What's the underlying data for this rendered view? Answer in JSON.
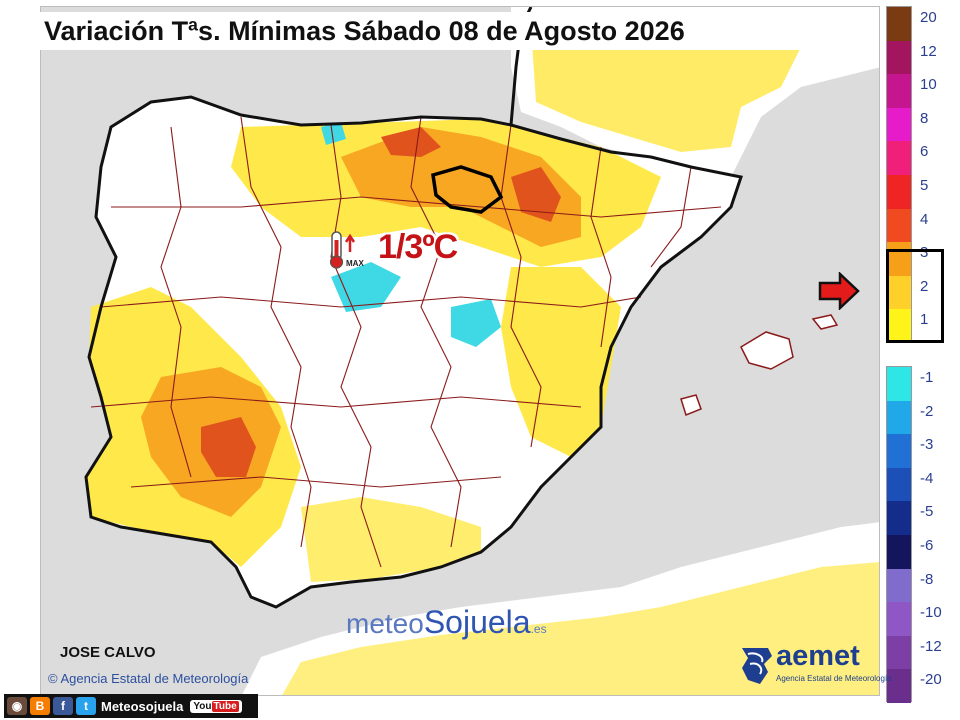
{
  "title": "Variación Tªs. Mínimas Sábado 08 de Agosto 2026",
  "highlight": {
    "label": "MAX",
    "value": "1/3ºC"
  },
  "author": "JOSE CALVO",
  "agency_credit": "© Agencia Estatal de Meteorología",
  "brand": {
    "meteo": "meteo",
    "sojuela": "Sojuela",
    "tld": ".es"
  },
  "aemet": {
    "name": "aemet",
    "subtitle": "Agencia Estatal de Meteorología"
  },
  "social": {
    "handle": "Meteosojuela",
    "youtube_a": "You",
    "youtube_b": "Tube"
  },
  "legend": {
    "warm": [
      {
        "label": "20",
        "color": "#7a3a12"
      },
      {
        "label": "12",
        "color": "#a3155f"
      },
      {
        "label": "10",
        "color": "#c6168f"
      },
      {
        "label": "8",
        "color": "#e61ccb"
      },
      {
        "label": "6",
        "color": "#f0207a"
      },
      {
        "label": "5",
        "color": "#ef2424"
      },
      {
        "label": "4",
        "color": "#f04a20"
      },
      {
        "label": "3",
        "color": "#f6a01a"
      },
      {
        "label": "2",
        "color": "#ffd02a"
      },
      {
        "label": "1",
        "color": "#fff41a"
      }
    ],
    "cold": [
      {
        "label": "-1",
        "color": "#2ee6e6"
      },
      {
        "label": "-2",
        "color": "#20a8e8"
      },
      {
        "label": "-3",
        "color": "#2070d6"
      },
      {
        "label": "-4",
        "color": "#1c4fb8"
      },
      {
        "label": "-5",
        "color": "#152d8a"
      },
      {
        "label": "-6",
        "color": "#15155e"
      },
      {
        "label": "-8",
        "color": "#7f6ccc"
      },
      {
        "label": "-10",
        "color": "#8e57c5"
      },
      {
        "label": "-12",
        "color": "#7c3fa6"
      },
      {
        "label": "-20",
        "color": "#6a2f8c"
      }
    ],
    "selected_range": "1 to 3"
  },
  "colors": {
    "land": "#ffffff",
    "sea": "#dcdcdc",
    "yellow": "#ffe84a",
    "orange": "#f7a722",
    "red": "#e0531d",
    "cyan": "#3fd9e6",
    "province_border": "#8b1a1a",
    "coast": "#111111"
  }
}
